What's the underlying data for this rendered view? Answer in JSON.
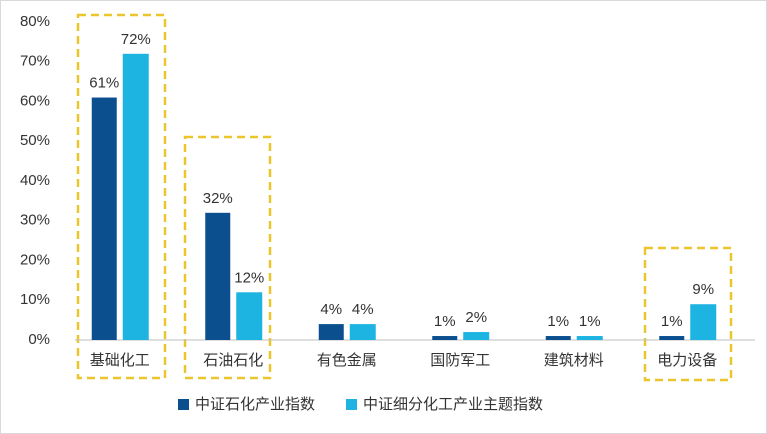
{
  "chart_data": {
    "type": "bar",
    "categories": [
      "基础化工",
      "石油石化",
      "有色金属",
      "国防军工",
      "建筑材料",
      "电力设备"
    ],
    "series": [
      {
        "name": "中证石化产业指数",
        "color": "#0b4f8f",
        "values": [
          61,
          32,
          4,
          1,
          1,
          1
        ],
        "value_labels": [
          "61%",
          "32%",
          "4%",
          "1%",
          "1%",
          "1%"
        ]
      },
      {
        "name": "中证细分化工产业主题指数",
        "color": "#1db4e2",
        "values": [
          72,
          12,
          4,
          2,
          1,
          9
        ],
        "value_labels": [
          "72%",
          "12%",
          "4%",
          "2%",
          "1%",
          "9%"
        ]
      }
    ],
    "ylim": [
      0,
      80
    ],
    "yticks": [
      {
        "value": 0,
        "label": "0%"
      },
      {
        "value": 10,
        "label": "10%"
      },
      {
        "value": 20,
        "label": "20%"
      },
      {
        "value": 30,
        "label": "30%"
      },
      {
        "value": 40,
        "label": "40%"
      },
      {
        "value": 50,
        "label": "50%"
      },
      {
        "value": 60,
        "label": "60%"
      },
      {
        "value": 70,
        "label": "70%"
      },
      {
        "value": 80,
        "label": "80%"
      }
    ],
    "legend": "bottom"
  }
}
